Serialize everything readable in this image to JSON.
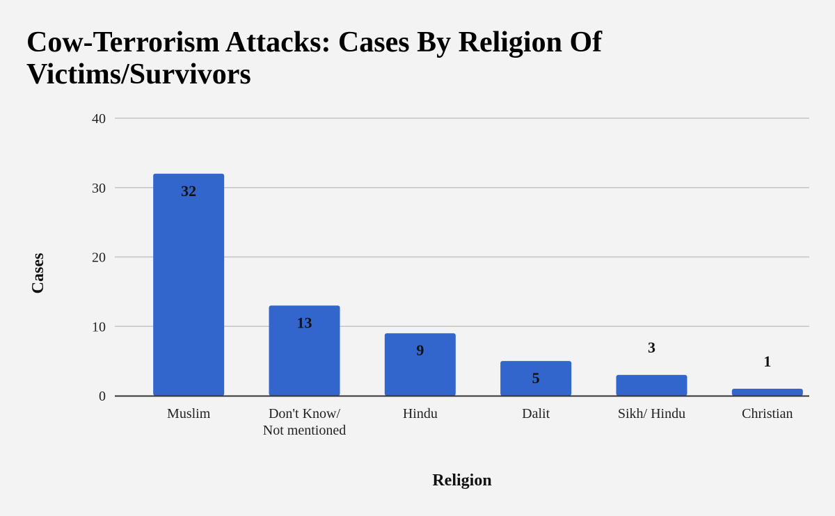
{
  "chart_data": {
    "type": "bar",
    "title": "Cow-Terrorism Attacks: Cases By Religion Of Victims/Survivors",
    "xlabel": "Religion",
    "ylabel": "Cases",
    "categories": [
      "Muslim",
      "Don't Know/ Not mentioned",
      "Hindu",
      "Dalit",
      "Sikh/ Hindu",
      "Christian"
    ],
    "category_lines": [
      [
        "Muslim"
      ],
      [
        "Don't Know/",
        "Not mentioned"
      ],
      [
        "Hindu"
      ],
      [
        "Dalit"
      ],
      [
        "Sikh/ Hindu"
      ],
      [
        "Christian"
      ]
    ],
    "values": [
      32,
      13,
      9,
      5,
      3,
      1
    ],
    "ylim": [
      0,
      40
    ],
    "yticks": [
      0,
      10,
      20,
      30,
      40
    ],
    "grid": true,
    "legend": "none",
    "data_labels": true,
    "colors": {
      "bar": "#3366cc",
      "gridline": "#c4c4c4",
      "axis": "#333333",
      "background": "#f3f3f3"
    }
  }
}
